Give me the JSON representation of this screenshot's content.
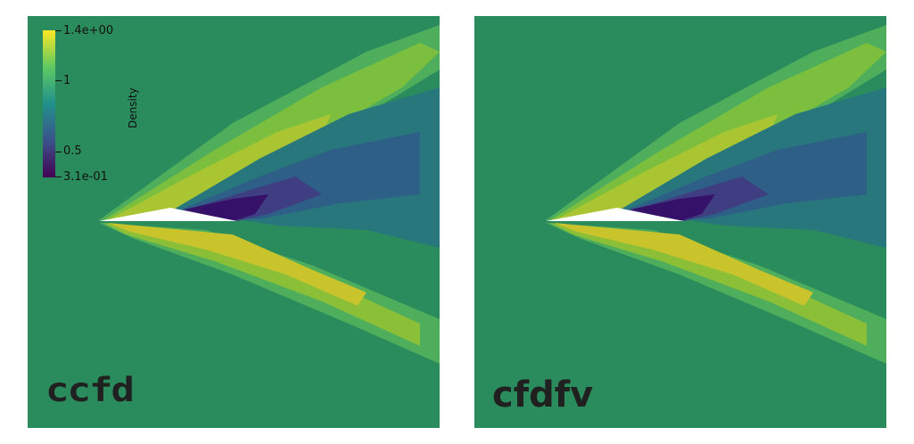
{
  "colorbar": {
    "title": "Density",
    "max_label": "1.4e+00",
    "min_label": "3.1e-01",
    "ticks": [
      {
        "label": "1",
        "value": 1.0
      },
      {
        "label": "0.5",
        "value": 0.5
      }
    ],
    "min": 0.31,
    "max": 1.4,
    "colormap": "viridis",
    "colors": [
      "#440154",
      "#3b528b",
      "#21918c",
      "#5ec962",
      "#fde725"
    ]
  },
  "panels": [
    {
      "logo": "ccfd"
    },
    {
      "logo": "cfdfv"
    }
  ],
  "colors": {
    "background": "#2a8c5c",
    "high_density": "#c9c42c",
    "low_density": "#2f0b5a",
    "airfoil": "#ffffff"
  }
}
